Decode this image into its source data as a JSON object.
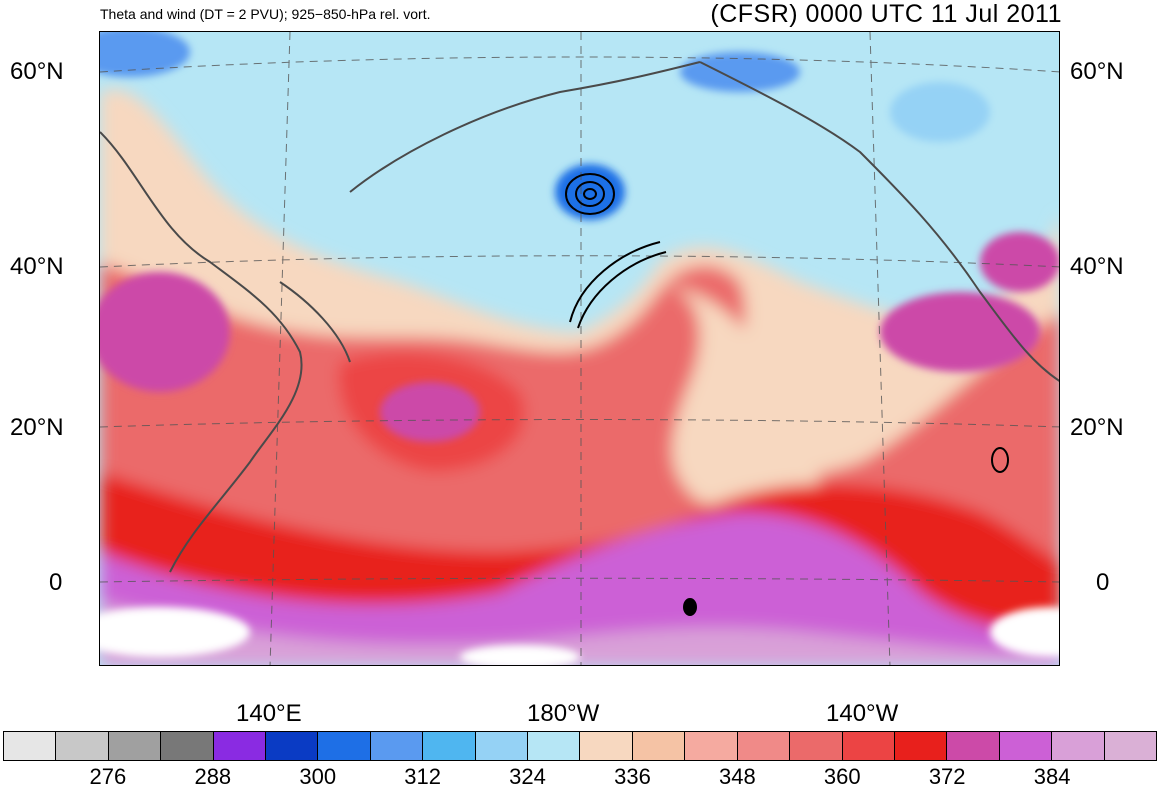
{
  "title_left": "Theta and wind (DT = 2 PVU); 925−850-hPa rel. vort.",
  "title_right": "(CFSR) 0000 UTC 11 Jul 2011",
  "lat_labels": [
    "60°N",
    "40°N",
    "20°N",
    "0"
  ],
  "lon_labels": [
    "140°E",
    "180°W",
    "140°W"
  ],
  "colorbar": {
    "colors": [
      "#e6e6e6",
      "#c8c8c8",
      "#a0a0a0",
      "#787878",
      "#8a2be2",
      "#0a3bc4",
      "#1e6fe6",
      "#5a9af0",
      "#4fb6f0",
      "#95d2f5",
      "#b6e6f5",
      "#f7d8c0",
      "#f5c3a5",
      "#f5aaa0",
      "#f08a88",
      "#eb6a6a",
      "#ec4444",
      "#e8201c",
      "#cc4aa8",
      "#cc60d6",
      "#d9a0d8",
      "#dab0d6"
    ],
    "labels": [
      "276",
      "288",
      "300",
      "312",
      "324",
      "336",
      "348",
      "360",
      "372",
      "384"
    ]
  }
}
